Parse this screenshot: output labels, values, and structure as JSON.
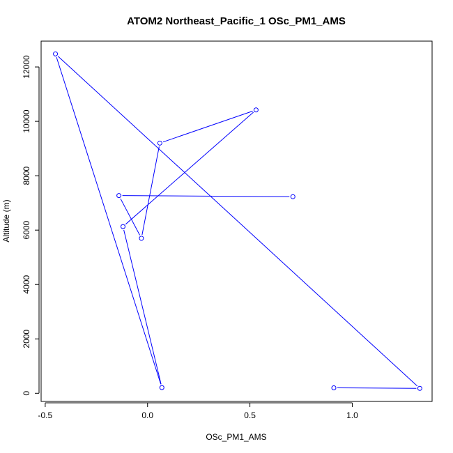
{
  "chart_data": {
    "type": "line",
    "title": "ATOM2 Northeast_Pacific_1 OSc_PM1_AMS",
    "xlabel": "OSc_PM1_AMS",
    "ylabel": "Altitude (m)",
    "xlim": [
      -0.52,
      1.39
    ],
    "ylim": [
      -300,
      12950
    ],
    "xticks": [
      -0.5,
      0.0,
      0.5,
      1.0
    ],
    "xtick_labels": [
      "-0.5",
      "0.0",
      "0.5",
      "1.0"
    ],
    "yticks": [
      0,
      2000,
      4000,
      6000,
      8000,
      10000,
      12000
    ],
    "ytick_labels": [
      "0",
      "2000",
      "4000",
      "6000",
      "8000",
      "10000",
      "12000"
    ],
    "grid": false,
    "series": [
      {
        "color": "#0000ff",
        "x": [
          0.91,
          1.33,
          -0.45,
          0.07,
          -0.12,
          0.53,
          0.06,
          -0.03,
          -0.14,
          0.71
        ],
        "y": [
          200,
          180,
          12480,
          210,
          6130,
          10420,
          9200,
          5700,
          7270,
          7230
        ]
      }
    ]
  }
}
